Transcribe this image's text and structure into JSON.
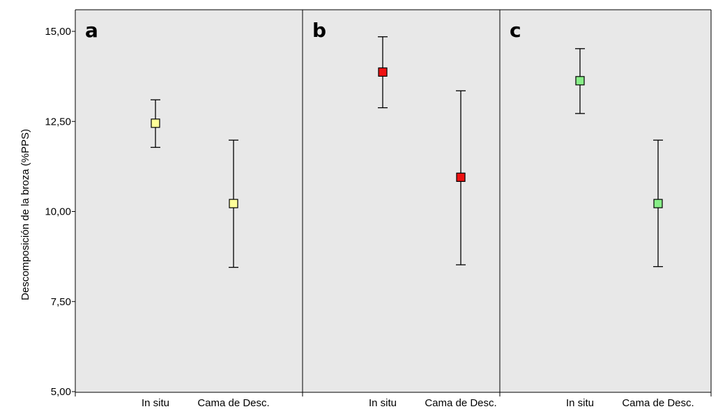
{
  "chart_data": {
    "type": "errorbar",
    "ylabel": "Descomposición de la broza (%PPS)",
    "ylim": [
      5,
      15
    ],
    "yticks": [
      5,
      7.5,
      10,
      12.5,
      15
    ],
    "ytick_labels": [
      "5,00",
      "7,50",
      "10,00",
      "12,50",
      "15,00"
    ],
    "categories": [
      "In situ",
      "Cama de Desc."
    ],
    "background": "#e8e8e8",
    "panels": [
      {
        "label": "a",
        "color": "#ffff99",
        "points": [
          {
            "category": "In situ",
            "mean": 12.45,
            "low": 11.78,
            "high": 13.1
          },
          {
            "category": "Cama de Desc.",
            "mean": 10.22,
            "low": 8.45,
            "high": 11.98
          }
        ]
      },
      {
        "label": "b",
        "color": "#ee1111",
        "points": [
          {
            "category": "In situ",
            "mean": 13.87,
            "low": 12.88,
            "high": 14.85
          },
          {
            "category": "Cama de Desc.",
            "mean": 10.95,
            "low": 8.52,
            "high": 13.35
          }
        ]
      },
      {
        "label": "c",
        "color": "#88ee88",
        "points": [
          {
            "category": "In situ",
            "mean": 13.63,
            "low": 12.72,
            "high": 14.52
          },
          {
            "category": "Cama de Desc.",
            "mean": 10.22,
            "low": 8.47,
            "high": 11.98
          }
        ]
      }
    ]
  }
}
